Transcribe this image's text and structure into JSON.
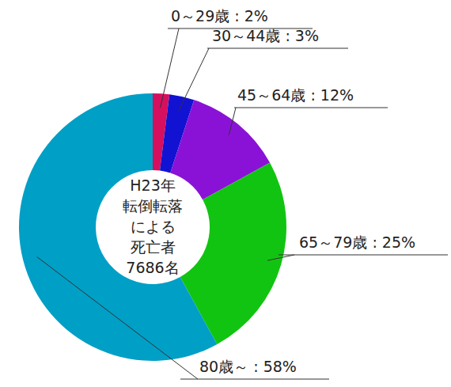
{
  "chart_data": {
    "type": "donut",
    "center_text": [
      "H23年",
      "転倒転落",
      "による",
      "死亡者",
      "7686名"
    ],
    "categories": [
      "0～29歳",
      "30～44歳",
      "45～64歳",
      "65～79歳",
      "80歳～"
    ],
    "values": [
      2,
      3,
      12,
      25,
      58
    ],
    "value_labels": [
      "0～29歳 : 2%",
      "30～44歳 : 3%",
      "45～64歳 : 12%",
      "65～79歳 : 25%",
      "80歳～ : 58%"
    ],
    "colors": [
      "#d6105e",
      "#1212d2",
      "#8a12d6",
      "#12c412",
      "#009fc6"
    ],
    "data_labels": true
  }
}
